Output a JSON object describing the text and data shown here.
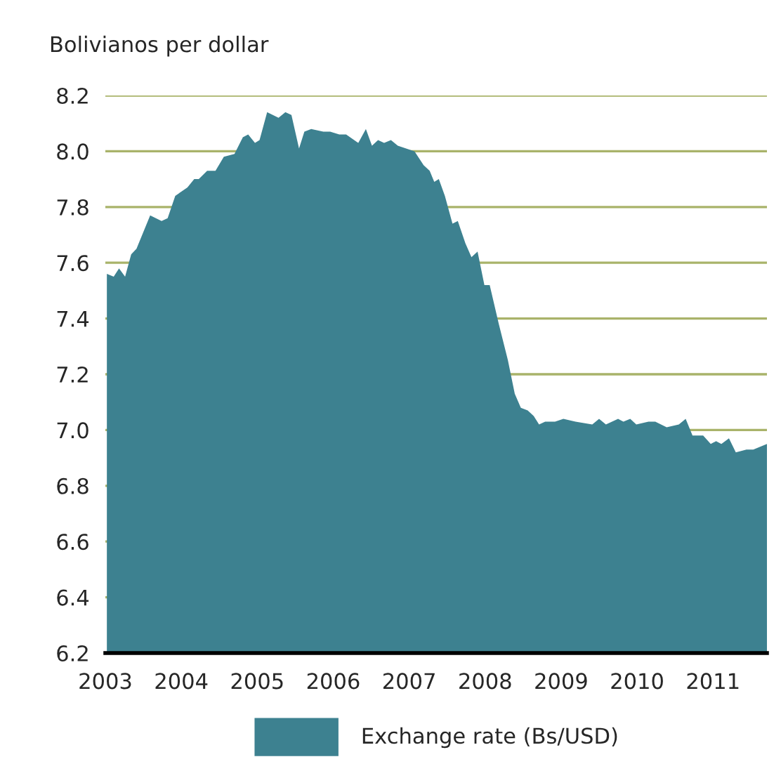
{
  "chart_data": {
    "type": "area",
    "ylabel": "Bolivianos per dollar",
    "xlim": [
      2003.0,
      2011.71
    ],
    "xticks": [
      2003,
      2004,
      2005,
      2006,
      2007,
      2008,
      2009,
      2010,
      2011
    ],
    "ylim": [
      6.2,
      8.2
    ],
    "yticks": [
      6.2,
      6.4,
      6.6,
      6.8,
      {
        "value": 7,
        "label": "7.0"
      },
      7.2,
      7.4,
      7.6,
      7.8,
      {
        "value": 8,
        "label": "8.0"
      },
      8.2
    ],
    "grid": "y",
    "legend": "bottom",
    "series": [
      {
        "name": "Exchange rate (Bs/USD)",
        "color": "#3d8190",
        "x": [
          2003.02,
          2003.11,
          2003.18,
          2003.26,
          2003.34,
          2003.41,
          2003.59,
          2003.74,
          2003.82,
          2003.92,
          2004.08,
          2004.17,
          2004.23,
          2004.34,
          2004.45,
          2004.56,
          2004.7,
          2004.81,
          2004.88,
          2004.97,
          2005.03,
          2005.13,
          2005.28,
          2005.37,
          2005.45,
          2005.55,
          2005.62,
          2005.71,
          2005.87,
          2005.96,
          2006.08,
          2006.17,
          2006.33,
          2006.43,
          2006.51,
          2006.59,
          2006.67,
          2006.76,
          2006.85,
          2007.07,
          2007.19,
          2007.27,
          2007.33,
          2007.39,
          2007.47,
          2007.57,
          2007.64,
          2007.74,
          2007.82,
          2007.9,
          2007.99,
          2008.06,
          2008.18,
          2008.3,
          2008.39,
          2008.47,
          2008.56,
          2008.64,
          2008.71,
          2008.79,
          2008.92,
          2009.03,
          2009.19,
          2009.41,
          2009.5,
          2009.59,
          2009.75,
          2009.82,
          2009.91,
          2009.99,
          2010.15,
          2010.24,
          2010.39,
          2010.55,
          2010.64,
          2010.73,
          2010.87,
          2010.97,
          2011.04,
          2011.11,
          2011.21,
          2011.3,
          2011.44,
          2011.53,
          2011.71
        ],
        "values": [
          7.56,
          7.55,
          7.58,
          7.55,
          7.63,
          7.65,
          7.77,
          7.75,
          7.76,
          7.84,
          7.87,
          7.9,
          7.9,
          7.93,
          7.93,
          7.98,
          7.99,
          8.05,
          8.06,
          8.03,
          8.04,
          8.14,
          8.12,
          8.14,
          8.13,
          8.01,
          8.07,
          8.08,
          8.07,
          8.07,
          8.06,
          8.06,
          8.03,
          8.08,
          8.02,
          8.04,
          8.03,
          8.04,
          8.02,
          8.0,
          7.95,
          7.93,
          7.89,
          7.9,
          7.84,
          7.74,
          7.75,
          7.67,
          7.62,
          7.64,
          7.52,
          7.52,
          7.38,
          7.25,
          7.13,
          7.08,
          7.07,
          7.05,
          7.02,
          7.03,
          7.03,
          7.04,
          7.03,
          7.02,
          7.04,
          7.02,
          7.04,
          7.03,
          7.04,
          7.02,
          7.03,
          7.03,
          7.01,
          7.02,
          7.04,
          6.98,
          6.98,
          6.95,
          6.96,
          6.95,
          6.97,
          6.92,
          6.93,
          6.93,
          6.95
        ]
      }
    ]
  }
}
